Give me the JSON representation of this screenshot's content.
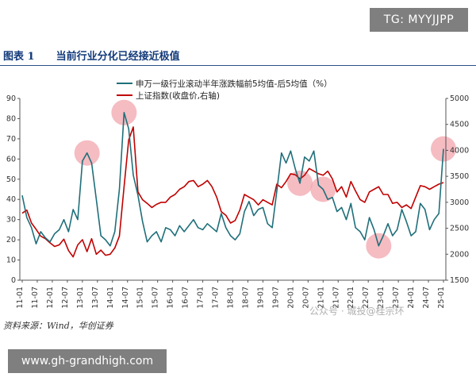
{
  "watermark_top": "TG: MYYJJPP",
  "figure": {
    "label": "图表 1",
    "title": "当前行业分化已经接近极值"
  },
  "source_note": "资料来源：Wind，华创证券",
  "watermark_right": "公众号 · 城投@桂宗环",
  "watermark_bottom": "www.gh-grandhigh.com",
  "colors": {
    "series1": "#1f6f7a",
    "series2": "#c00000",
    "highlight": "#f2a6ad",
    "title": "#123a7a"
  },
  "chart_data": {
    "type": "line",
    "title": "",
    "left_axis": {
      "min": 0,
      "max": 90,
      "ticks": [
        0,
        10,
        20,
        30,
        40,
        50,
        60,
        70,
        80,
        90
      ]
    },
    "right_axis": {
      "min": 1500,
      "max": 5000,
      "ticks": [
        1500,
        2000,
        2500,
        3000,
        3500,
        4000,
        4500,
        5000
      ]
    },
    "legend_position": "top-center",
    "grid": false,
    "x_tick_labels": [
      "11-01",
      "11-07",
      "12-01",
      "12-07",
      "13-01",
      "13-07",
      "14-01",
      "14-07",
      "15-01",
      "15-07",
      "16-01",
      "16-07",
      "17-01",
      "17-07",
      "18-01",
      "18-07",
      "19-01",
      "19-07",
      "20-01",
      "20-07",
      "21-01",
      "21-07",
      "22-01",
      "22-07",
      "23-01",
      "23-07",
      "24-01",
      "24-07",
      "25-01"
    ],
    "series": [
      {
        "name": "申万一级行业滚动半年涨跌幅前5均值-后5均值（%）",
        "axis": "left",
        "values": [
          42,
          31,
          26,
          18,
          24,
          21,
          19,
          23,
          25,
          30,
          24,
          35,
          30,
          59,
          63,
          58,
          40,
          22,
          20,
          17,
          24,
          45,
          83,
          75,
          52,
          42,
          29,
          19,
          22,
          24,
          19,
          26,
          25,
          22,
          27,
          24,
          27,
          30,
          26,
          25,
          28,
          26,
          24,
          33,
          26,
          22,
          20,
          23,
          34,
          39,
          32,
          35,
          36,
          28,
          26,
          44,
          63,
          58,
          64,
          55,
          48,
          61,
          59,
          64,
          47,
          45,
          40,
          41,
          34,
          36,
          30,
          38,
          26,
          24,
          20,
          31,
          25,
          17,
          22,
          28,
          22,
          25,
          35,
          29,
          22,
          24,
          38,
          35,
          25,
          30,
          33,
          65
        ]
      },
      {
        "name": "上证指数(收盘价,右轴)",
        "axis": "right",
        "values": [
          2790,
          2850,
          2600,
          2480,
          2350,
          2300,
          2220,
          2150,
          2180,
          2290,
          2070,
          1950,
          2180,
          2280,
          2050,
          2300,
          2000,
          2080,
          1980,
          2000,
          2120,
          2350,
          3300,
          4200,
          4450,
          3200,
          3050,
          2980,
          2900,
          2960,
          3000,
          3000,
          3100,
          3150,
          3250,
          3300,
          3400,
          3420,
          3300,
          3350,
          3420,
          3300,
          3100,
          2820,
          2750,
          2600,
          2650,
          2850,
          3150,
          3100,
          3050,
          2950,
          3050,
          3000,
          2950,
          3350,
          3280,
          3400,
          3550,
          3530,
          3450,
          3520,
          3650,
          3600,
          3550,
          3520,
          3600,
          3450,
          3200,
          3300,
          3100,
          3400,
          3220,
          3050,
          3000,
          3200,
          3250,
          3300,
          3150,
          3150,
          2980,
          3000,
          2900,
          2950,
          2880,
          3100,
          3320,
          3300,
          3250,
          3300,
          3350,
          3380
        ]
      }
    ],
    "highlights": [
      {
        "index": 14,
        "series": "left"
      },
      {
        "index": 22,
        "series": "left"
      },
      {
        "index": 60,
        "series": "left"
      },
      {
        "index": 65,
        "series": "left"
      },
      {
        "index": 77,
        "series": "left"
      },
      {
        "index": 91,
        "series": "left"
      }
    ]
  }
}
